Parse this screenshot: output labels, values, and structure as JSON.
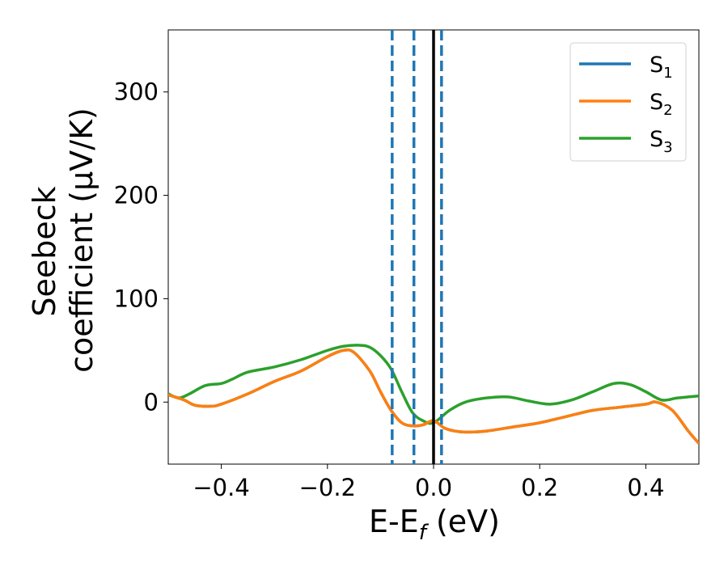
{
  "chart_data": {
    "type": "line",
    "xlabel": {
      "main": "E-E",
      "sub": "f",
      "suffix": " (eV)"
    },
    "ylabel": {
      "line1": "Seebeck",
      "line2": "coefficient  (μV/K)"
    },
    "xlim": [
      -0.5,
      0.5
    ],
    "ylim": [
      -60,
      360
    ],
    "xticks": [
      -0.4,
      -0.2,
      0.0,
      0.2,
      0.4
    ],
    "xtick_labels": [
      "−0.4",
      "−0.2",
      "0.0",
      "0.2",
      "0.4"
    ],
    "yticks": [
      0,
      100,
      200,
      300
    ],
    "ytick_labels": [
      "0",
      "100",
      "200",
      "300"
    ],
    "grid": false,
    "legend_position": "top-right",
    "vlines": [
      {
        "x": 0.0,
        "style": "solid",
        "color": "#000000"
      },
      {
        "x": -0.078,
        "style": "dashed",
        "color": "#1f77b4"
      },
      {
        "x": -0.037,
        "style": "dashed",
        "color": "#1f77b4"
      },
      {
        "x": 0.015,
        "style": "dashed",
        "color": "#1f77b4"
      }
    ],
    "series": [
      {
        "name": "S",
        "sub": "1",
        "color": "#1f77b4",
        "x": [
          -0.5,
          -0.47,
          -0.45,
          -0.42,
          -0.4,
          -0.35,
          -0.3,
          -0.25,
          -0.2,
          -0.17,
          -0.15,
          -0.12,
          -0.1,
          -0.08,
          -0.06,
          -0.04,
          -0.02,
          0.0,
          0.02,
          0.04,
          0.06,
          0.1,
          0.15,
          0.2,
          0.25,
          0.3,
          0.35,
          0.4,
          0.42,
          0.45,
          0.48,
          0.5
        ],
        "y": [
          7,
          2,
          -3,
          -4,
          -2,
          8,
          20,
          30,
          44,
          50,
          48,
          30,
          10,
          -8,
          -20,
          -23,
          -22,
          -18,
          -25,
          -28,
          -29,
          -28,
          -24,
          -20,
          -14,
          -8,
          -5,
          -2,
          0,
          -8,
          -28,
          -40
        ]
      },
      {
        "name": "S",
        "sub": "2",
        "color": "#ff7f0e",
        "x": [
          -0.5,
          -0.47,
          -0.45,
          -0.42,
          -0.4,
          -0.35,
          -0.3,
          -0.25,
          -0.2,
          -0.17,
          -0.15,
          -0.12,
          -0.1,
          -0.08,
          -0.06,
          -0.04,
          -0.02,
          0.0,
          0.02,
          0.04,
          0.06,
          0.1,
          0.15,
          0.2,
          0.25,
          0.3,
          0.35,
          0.4,
          0.42,
          0.45,
          0.48,
          0.5
        ],
        "y": [
          7,
          2,
          -3,
          -4,
          -2,
          8,
          20,
          30,
          44,
          50,
          48,
          30,
          10,
          -8,
          -20,
          -23,
          -22,
          -18,
          -25,
          -28,
          -29,
          -28,
          -24,
          -20,
          -14,
          -8,
          -5,
          -2,
          0,
          -8,
          -28,
          -40
        ]
      },
      {
        "name": "S",
        "sub": "3",
        "color": "#2ca02c",
        "x": [
          -0.5,
          -0.48,
          -0.46,
          -0.43,
          -0.4,
          -0.38,
          -0.35,
          -0.3,
          -0.25,
          -0.2,
          -0.17,
          -0.14,
          -0.12,
          -0.1,
          -0.08,
          -0.06,
          -0.04,
          -0.02,
          0.0,
          0.03,
          0.06,
          0.1,
          0.14,
          0.18,
          0.22,
          0.26,
          0.3,
          0.34,
          0.37,
          0.4,
          0.43,
          0.46,
          0.5
        ],
        "y": [
          8,
          4,
          8,
          16,
          18,
          22,
          29,
          34,
          41,
          50,
          54,
          55,
          53,
          45,
          32,
          10,
          -10,
          -18,
          -20,
          -8,
          0,
          4,
          5,
          1,
          -2,
          2,
          10,
          18,
          17,
          10,
          2,
          4,
          6
        ]
      }
    ]
  }
}
